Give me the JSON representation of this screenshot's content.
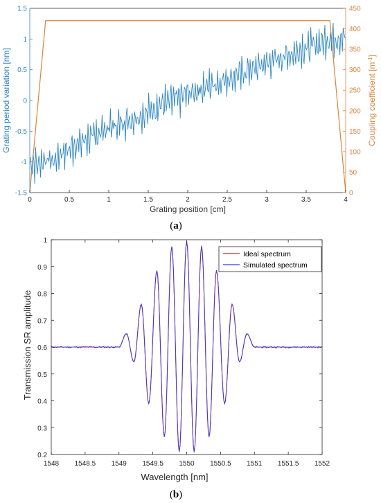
{
  "panels": {
    "a": "(a)",
    "b": "(b)"
  },
  "colors": {
    "blue": "#2E86C1",
    "orange": "#D9843B",
    "ideal": "#C0392B",
    "simulated": "#3A3AE0",
    "axis_b": "#262626"
  },
  "chart_data": [
    {
      "id": "a",
      "type": "line",
      "title": "",
      "xlabel": "Grating position [cm]",
      "ylabel_left": "Grating period variation [nm]",
      "ylabel_right": "Coupling coefficient [m",
      "ylabel_right_sup": "-1",
      "ylabel_right_end": "]",
      "xlim": [
        0,
        4
      ],
      "ylim_left": [
        -1.5,
        1.5
      ],
      "ylim_right": [
        0,
        450
      ],
      "xticks": [
        "0",
        "0.5",
        "1",
        "1.5",
        "2",
        "2.5",
        "3",
        "3.5",
        "4"
      ],
      "yticks_left": [
        "-1.5",
        "-1",
        "-0.5",
        "0",
        "0.5",
        "1",
        "1.5"
      ],
      "yticks_right": [
        "0",
        "50",
        "100",
        "150",
        "200",
        "250",
        "300",
        "350",
        "400",
        "450"
      ],
      "grid": false,
      "series": [
        {
          "axis": "left",
          "x": [
            0,
            0.1,
            0.2,
            0.3,
            0.4,
            0.5,
            0.6,
            0.7,
            0.8,
            0.9,
            1.0,
            1.1,
            1.2,
            1.3,
            1.4,
            1.5,
            1.6,
            1.7,
            1.8,
            1.9,
            2.0,
            2.1,
            2.2,
            2.3,
            2.4,
            2.5,
            2.6,
            2.7,
            2.8,
            2.9,
            3.0,
            3.1,
            3.2,
            3.3,
            3.4,
            3.5,
            3.6,
            3.7,
            3.8,
            3.9,
            4.0
          ],
          "y": [
            -1.0,
            -1.05,
            -0.95,
            -1.0,
            -0.85,
            -0.8,
            -0.7,
            -0.65,
            -0.6,
            -0.5,
            -0.45,
            -0.4,
            -0.35,
            -0.3,
            -0.25,
            -0.2,
            -0.1,
            -0.05,
            0.0,
            0.05,
            0.1,
            0.15,
            0.2,
            0.25,
            0.3,
            0.35,
            0.4,
            0.45,
            0.5,
            0.55,
            0.6,
            0.65,
            0.7,
            0.75,
            0.8,
            0.85,
            0.9,
            0.95,
            1.0,
            1.0,
            1.05
          ]
        },
        {
          "axis": "right",
          "x": [
            0,
            0.2,
            3.8,
            4.0
          ],
          "y": [
            0,
            420,
            420,
            0
          ]
        }
      ]
    },
    {
      "id": "b",
      "type": "line",
      "title": "",
      "xlabel": "Wavelength [nm]",
      "ylabel": "Transmission SR amplitude",
      "xlim": [
        1548,
        1552
      ],
      "ylim": [
        0.2,
        1.0
      ],
      "xticks": [
        "1548",
        "1548.5",
        "1549",
        "1549.5",
        "1550",
        "1550.5",
        "1551",
        "1551.5",
        "1552"
      ],
      "yticks": [
        "0.2",
        "0.3",
        "0.4",
        "0.5",
        "0.6",
        "0.7",
        "0.8",
        "0.9",
        "1"
      ],
      "grid": false,
      "legend_position": "top-right",
      "lobes": [
        {
          "x": 1549.11,
          "y": 0.65
        },
        {
          "x": 1549.22,
          "y": 0.545
        },
        {
          "x": 1549.33,
          "y": 0.76
        },
        {
          "x": 1549.44,
          "y": 0.39
        },
        {
          "x": 1549.56,
          "y": 0.885
        },
        {
          "x": 1549.67,
          "y": 0.265
        },
        {
          "x": 1549.78,
          "y": 0.975
        },
        {
          "x": 1549.89,
          "y": 0.21
        },
        {
          "x": 1550.0,
          "y": 0.995
        },
        {
          "x": 1550.11,
          "y": 0.21
        },
        {
          "x": 1550.22,
          "y": 0.975
        },
        {
          "x": 1550.33,
          "y": 0.265
        },
        {
          "x": 1550.44,
          "y": 0.885
        },
        {
          "x": 1550.56,
          "y": 0.39
        },
        {
          "x": 1550.67,
          "y": 0.76
        },
        {
          "x": 1550.78,
          "y": 0.545
        },
        {
          "x": 1550.89,
          "y": 0.65
        }
      ],
      "baseline": 0.6,
      "series": [
        {
          "name": "Ideal spectrum"
        },
        {
          "name": "Simulated spectrum"
        }
      ]
    }
  ]
}
